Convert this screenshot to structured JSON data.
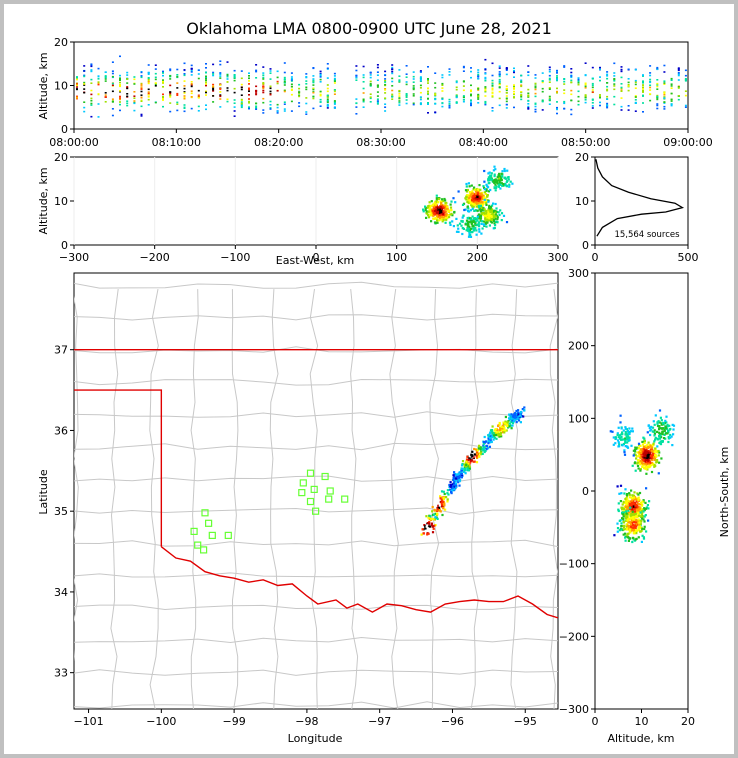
{
  "title": "Oklahoma LMA 0800-0900 UTC June 28, 2021",
  "colors": {
    "state_border": "#e00000",
    "county_lines": "#c8c8c8",
    "stations": "#66ff33",
    "frame": "#000000"
  },
  "colormap": [
    "#0000c8",
    "#0060ff",
    "#00c8ff",
    "#00e0a0",
    "#20c020",
    "#a0e000",
    "#ffff00",
    "#ffa000",
    "#ff3000",
    "#c00000",
    "#000000",
    "#ffffff"
  ],
  "chart_data": [
    {
      "name": "time-height",
      "type": "heatmap",
      "xlabel": "",
      "ylabel": "Altitude, km",
      "x_ticks": [
        "08:00:00",
        "08:10:00",
        "08:20:00",
        "08:30:00",
        "08:40:00",
        "08:50:00",
        "09:00:00"
      ],
      "xlim_minutes": [
        0,
        60
      ],
      "ylim": [
        0,
        20
      ],
      "y_ticks": [
        0,
        10,
        20
      ],
      "core_altitude_km": [
        5,
        14
      ],
      "active_periods_minutes": [
        [
          0,
          26
        ],
        [
          27,
          60
        ]
      ]
    },
    {
      "name": "east-west-altitude",
      "type": "heatmap",
      "xlabel": "East-West, km",
      "ylabel": "Altitude, km",
      "xlim": [
        -300,
        300
      ],
      "ylim": [
        0,
        20
      ],
      "x_ticks": [
        -300,
        -200,
        -100,
        0,
        100,
        200,
        300
      ],
      "y_ticks": [
        0,
        10,
        20
      ],
      "cells": [
        {
          "x": 152,
          "z": 8,
          "weight": 1
        },
        {
          "x": 198,
          "z": 11,
          "weight": 0.9
        },
        {
          "x": 212,
          "z": 7,
          "weight": 0.6
        },
        {
          "x": 225,
          "z": 15,
          "weight": 0.4
        },
        {
          "x": 190,
          "z": 5,
          "weight": 0.4
        }
      ]
    },
    {
      "name": "altitude-histogram",
      "type": "line",
      "xlim": [
        0,
        500
      ],
      "ylim": [
        0,
        20
      ],
      "x_ticks": [
        0,
        500
      ],
      "y_ticks": [
        0,
        10,
        20
      ],
      "annotation": "15,564 sources",
      "x": [
        10,
        40,
        120,
        250,
        380,
        470,
        430,
        300,
        180,
        90,
        40,
        15,
        5
      ],
      "y": [
        2,
        4,
        6,
        7,
        7.5,
        8.5,
        9.5,
        10.5,
        12,
        13.5,
        15.5,
        17.5,
        19.5
      ]
    },
    {
      "name": "plan-view-map",
      "type": "scatter",
      "xlabel": "Longitude",
      "ylabel": "Latitude",
      "xlim": [
        -101.2,
        -94.55
      ],
      "ylim": [
        32.55,
        37.95
      ],
      "x_ticks": [
        -101,
        -100,
        -99,
        -98,
        -97,
        -96,
        -95
      ],
      "y_ticks": [
        33,
        34,
        35,
        36,
        37
      ],
      "line_axis": [
        [
          -96.4,
          34.75
        ],
        [
          -96.2,
          35.05
        ],
        [
          -96.0,
          35.35
        ],
        [
          -95.85,
          35.55
        ],
        [
          -95.65,
          35.75
        ],
        [
          -95.45,
          35.95
        ],
        [
          -95.25,
          36.1
        ],
        [
          -95.05,
          36.25
        ]
      ],
      "cores": [
        {
          "lon": -96.35,
          "lat": 34.8,
          "weight": 1
        },
        {
          "lon": -96.2,
          "lat": 35.1,
          "weight": 0.9
        },
        {
          "lon": -95.75,
          "lat": 35.7,
          "weight": 0.95
        },
        {
          "lon": -95.35,
          "lat": 36.05,
          "weight": 0.6
        }
      ],
      "stations": [
        [
          -99.4,
          34.98
        ],
        [
          -99.35,
          34.85
        ],
        [
          -99.55,
          34.75
        ],
        [
          -99.3,
          34.7
        ],
        [
          -99.5,
          34.58
        ],
        [
          -99.42,
          34.52
        ],
        [
          -99.08,
          34.7
        ],
        [
          -97.95,
          35.47
        ],
        [
          -97.75,
          35.43
        ],
        [
          -98.05,
          35.35
        ],
        [
          -97.9,
          35.27
        ],
        [
          -98.07,
          35.23
        ],
        [
          -97.68,
          35.25
        ],
        [
          -97.48,
          35.15
        ],
        [
          -97.95,
          35.12
        ],
        [
          -97.7,
          35.15
        ],
        [
          -97.88,
          35.0
        ]
      ]
    },
    {
      "name": "north-south-altitude",
      "type": "heatmap",
      "xlabel": "Altitude, km",
      "ylabel": "North-South, km",
      "xlim": [
        0,
        20
      ],
      "ylim": [
        -300,
        300
      ],
      "x_ticks": [
        0,
        10,
        20
      ],
      "y_ticks": [
        -300,
        -200,
        -100,
        0,
        100,
        200,
        300
      ],
      "cells": [
        {
          "z": 11,
          "y": 50,
          "weight": 1
        },
        {
          "z": 8,
          "y": -20,
          "weight": 0.9
        },
        {
          "z": 8,
          "y": -45,
          "weight": 0.8
        },
        {
          "z": 14,
          "y": 85,
          "weight": 0.4
        },
        {
          "z": 6,
          "y": 75,
          "weight": 0.3
        }
      ]
    }
  ]
}
